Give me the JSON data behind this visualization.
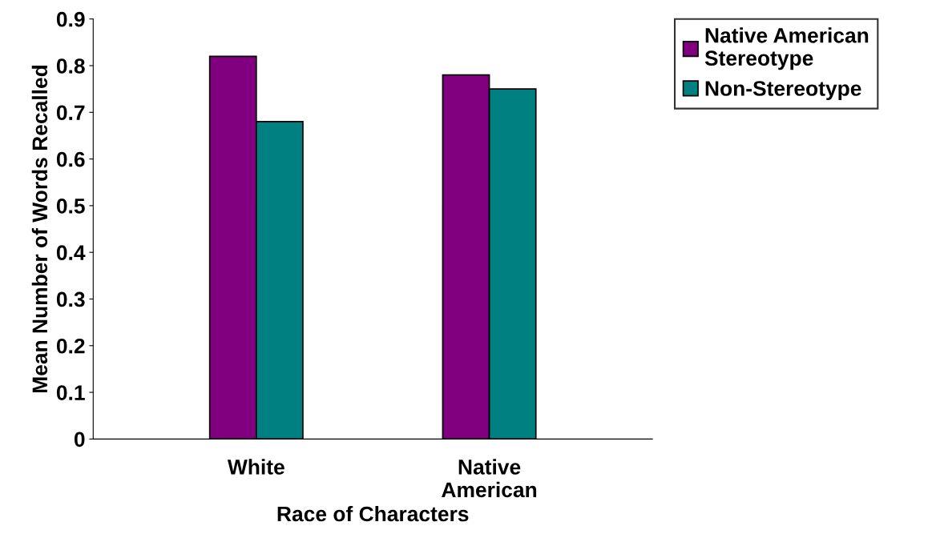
{
  "chart_data": {
    "type": "bar",
    "xlabel": "Race of Characters",
    "ylabel": "Mean Number of Words Recalled",
    "categories": [
      "White",
      "Native\nAmerican"
    ],
    "series": [
      {
        "name": "Native American\nStereotype",
        "color": "#800080",
        "values": [
          0.82,
          0.78
        ]
      },
      {
        "name": "Non-Stereotype",
        "color": "#008080",
        "values": [
          0.68,
          0.75
        ]
      }
    ],
    "ylim": [
      0,
      0.9
    ],
    "yticks": [
      0,
      0.1,
      0.2,
      0.3,
      0.4,
      0.5,
      0.6,
      0.7,
      0.8,
      0.9
    ],
    "grid": false,
    "legend": "top right"
  }
}
